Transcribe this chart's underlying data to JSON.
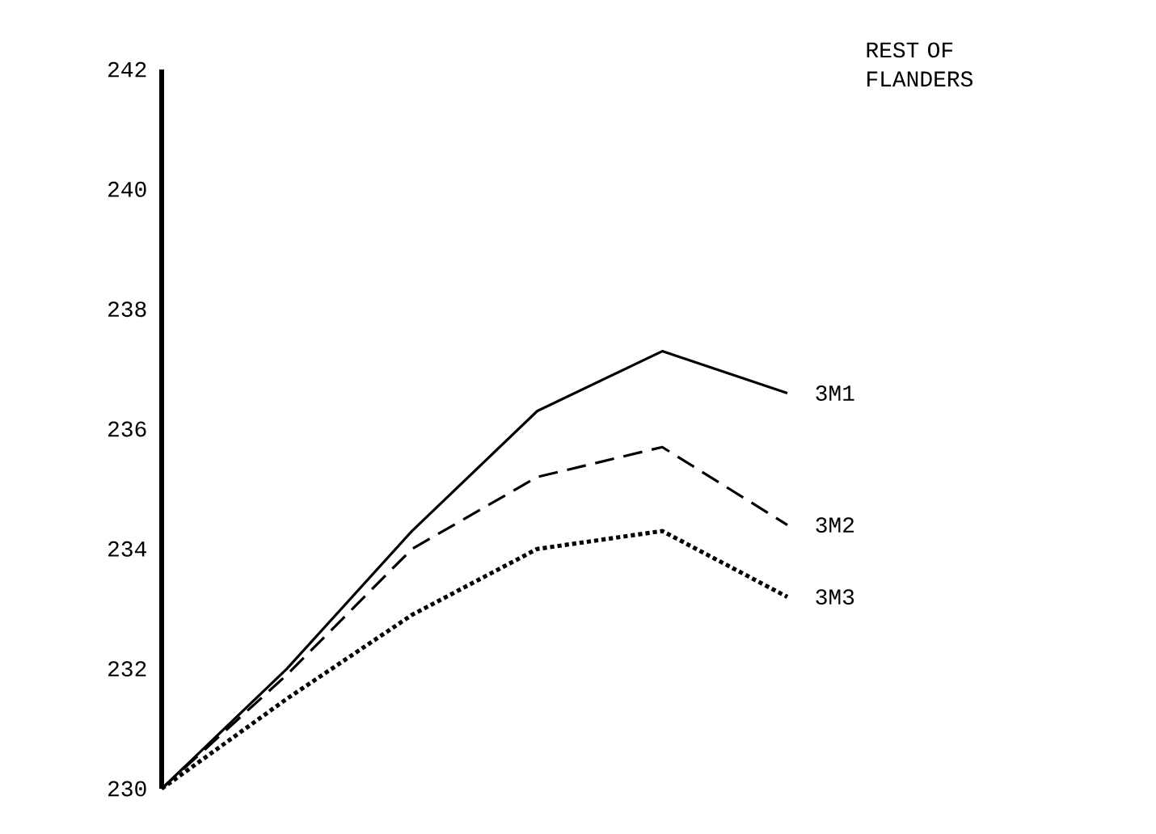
{
  "chart_data": {
    "type": "line",
    "title": "REST OF FLANDERS",
    "categories": [
      null,
      null,
      null,
      null,
      null,
      null
    ],
    "ylim": [
      230,
      242
    ],
    "yticks": [
      230,
      232,
      234,
      236,
      238,
      240,
      242
    ],
    "grid": false,
    "legend": false,
    "marker": "none",
    "series": [
      {
        "name": "3M1",
        "color": "#000000",
        "line_style": "solid",
        "values": [
          230,
          232.0,
          234.3,
          236.3,
          237.3,
          236.6
        ]
      },
      {
        "name": "3M2",
        "color": "#000000",
        "line_style": "dashed",
        "values": [
          230,
          231.9,
          234.0,
          235.2,
          235.7,
          234.4
        ]
      },
      {
        "name": "3M3",
        "color": "#000000",
        "line_style": "dotted",
        "values": [
          230,
          231.5,
          232.9,
          234.0,
          234.3,
          233.2
        ]
      }
    ]
  }
}
